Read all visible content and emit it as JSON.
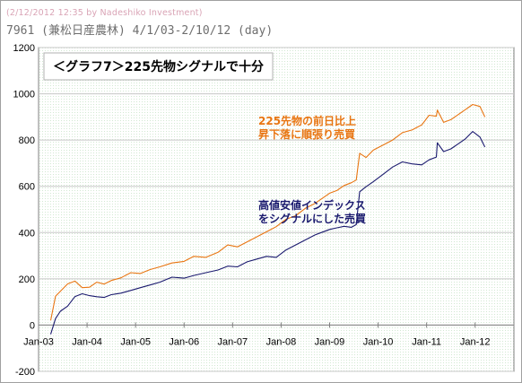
{
  "header": {
    "stamp": "(2/12/2012 12:35 by Nadeshiko Investment)",
    "subtitle": "7961 (兼松日産農林) 4/1/03-2/10/12 (day)"
  },
  "chart_data": {
    "type": "line",
    "title": "＜グラフ7＞225先物シグナルで十分",
    "ylim": [
      -200,
      1200
    ],
    "yticks": [
      -200,
      0,
      200,
      400,
      600,
      800,
      1000,
      1200
    ],
    "xlim": [
      2003.25,
      2012.8
    ],
    "xticks": [
      {
        "label": "Jan-03",
        "x": 2003.0
      },
      {
        "label": "Jan-04",
        "x": 2004.0
      },
      {
        "label": "Jan-05",
        "x": 2005.0
      },
      {
        "label": "Jan-06",
        "x": 2006.0
      },
      {
        "label": "Jan-07",
        "x": 2007.0
      },
      {
        "label": "Jan-08",
        "x": 2008.0
      },
      {
        "label": "Jan-09",
        "x": 2009.0
      },
      {
        "label": "Jan-10",
        "x": 2010.0
      },
      {
        "label": "Jan-11",
        "x": 2011.0
      },
      {
        "label": "Jan-12",
        "x": 2012.0
      }
    ],
    "grid": true,
    "series": [
      {
        "name": "225先物の前日比上昇下落に順張り売買",
        "label_lines": [
          "225先物の前日比上",
          "昇下落に順張り売買"
        ],
        "color": "#e87511",
        "x": [
          2003.25,
          2003.35,
          2003.45,
          2003.6,
          2003.75,
          2003.9,
          2004.05,
          2004.2,
          2004.35,
          2004.5,
          2004.7,
          2004.9,
          2005.1,
          2005.3,
          2005.5,
          2005.75,
          2006.0,
          2006.2,
          2006.45,
          2006.7,
          2006.9,
          2007.1,
          2007.3,
          2007.5,
          2007.7,
          2007.9,
          2008.1,
          2008.3,
          2008.5,
          2008.7,
          2008.85,
          2009.0,
          2009.15,
          2009.3,
          2009.45,
          2009.55,
          2009.62,
          2009.75,
          2009.9,
          2010.1,
          2010.3,
          2010.5,
          2010.7,
          2010.9,
          2011.05,
          2011.2,
          2011.22,
          2011.35,
          2011.5,
          2011.65,
          2011.8,
          2011.95,
          2012.1,
          2012.2
        ],
        "y": [
          20,
          130,
          150,
          180,
          190,
          160,
          160,
          180,
          170,
          200,
          210,
          230,
          225,
          240,
          250,
          265,
          270,
          290,
          300,
          320,
          350,
          340,
          360,
          380,
          400,
          420,
          450,
          480,
          510,
          530,
          550,
          570,
          580,
          600,
          610,
          620,
          750,
          730,
          760,
          780,
          800,
          830,
          840,
          860,
          900,
          910,
          935,
          880,
          890,
          910,
          930,
          950,
          940,
          900
        ]
      },
      {
        "name": "高値安値インデックスをシグナルにした売買",
        "label_lines": [
          "高値安値インデックス",
          "をシグナルにした売買"
        ],
        "color": "#1a1a6e",
        "x": [
          2003.25,
          2003.35,
          2003.45,
          2003.6,
          2003.75,
          2003.9,
          2004.05,
          2004.2,
          2004.35,
          2004.5,
          2004.7,
          2004.9,
          2005.1,
          2005.3,
          2005.5,
          2005.75,
          2006.0,
          2006.2,
          2006.45,
          2006.7,
          2006.9,
          2007.1,
          2007.3,
          2007.5,
          2007.7,
          2007.9,
          2008.1,
          2008.3,
          2008.5,
          2008.7,
          2008.85,
          2009.0,
          2009.15,
          2009.3,
          2009.45,
          2009.55,
          2009.62,
          2009.75,
          2009.9,
          2010.1,
          2010.3,
          2010.5,
          2010.7,
          2010.9,
          2011.05,
          2011.2,
          2011.22,
          2011.35,
          2011.5,
          2011.65,
          2011.8,
          2011.95,
          2012.1,
          2012.2
        ],
        "y": [
          -40,
          30,
          60,
          80,
          120,
          130,
          120,
          130,
          125,
          135,
          140,
          150,
          160,
          170,
          180,
          200,
          210,
          220,
          230,
          240,
          255,
          250,
          270,
          280,
          290,
          300,
          330,
          350,
          370,
          390,
          400,
          410,
          415,
          420,
          430,
          440,
          580,
          600,
          620,
          650,
          680,
          700,
          690,
          700,
          720,
          730,
          790,
          750,
          760,
          780,
          800,
          830,
          820,
          770
        ]
      }
    ]
  }
}
